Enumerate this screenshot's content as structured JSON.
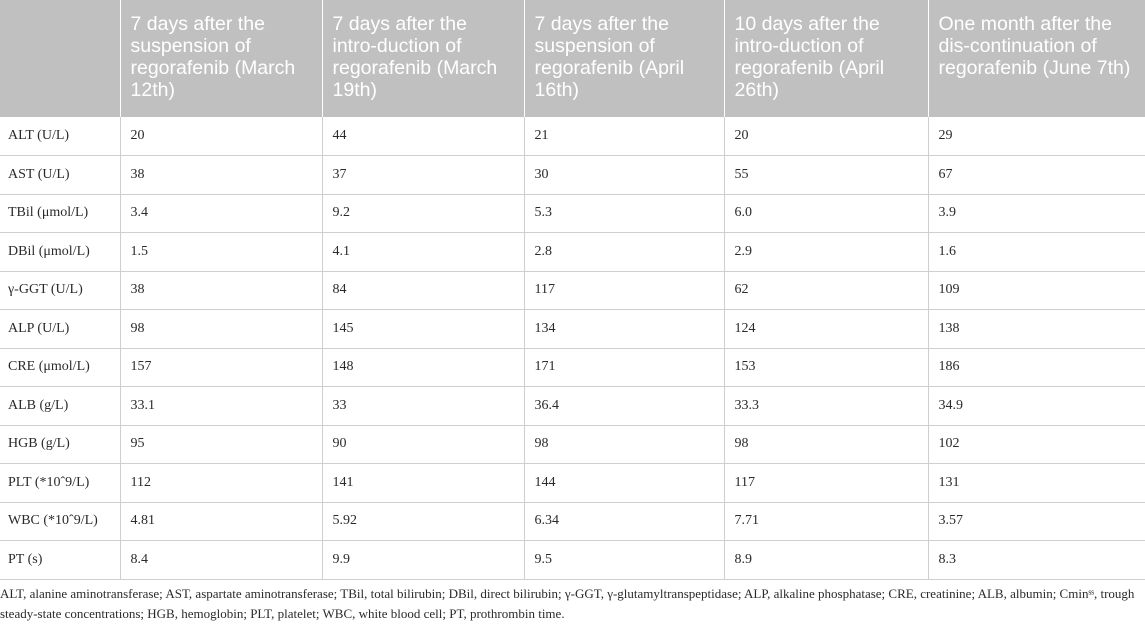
{
  "table": {
    "headers": [
      "",
      "7 days after the suspension of regorafenib (March 12th)",
      "7 days after the intro-duction of regorafenib (March 19th)",
      "7 days after the suspension of regorafenib (April 16th)",
      "10 days after the intro-duction of regorafenib (April 26th)",
      "One month after the dis-continuation of regorafenib (June 7th)"
    ],
    "rows": [
      [
        "ALT (U/L)",
        "20",
        "44",
        "21",
        "20",
        "29"
      ],
      [
        "AST (U/L)",
        "38",
        "37",
        "30",
        "55",
        "67"
      ],
      [
        "TBil (μmol/L)",
        "3.4",
        "9.2",
        "5.3",
        "6.0",
        "3.9"
      ],
      [
        "DBil (μmol/L)",
        "1.5",
        "4.1",
        "2.8",
        "2.9",
        "1.6"
      ],
      [
        "γ-GGT (U/L)",
        "38",
        "84",
        "117",
        "62",
        "109"
      ],
      [
        "ALP (U/L)",
        "98",
        "145",
        "134",
        "124",
        "138"
      ],
      [
        "CRE (μmol/L)",
        "157",
        "148",
        "171",
        "153",
        "186"
      ],
      [
        "ALB (g/L)",
        "33.1",
        "33",
        "36.4",
        "33.3",
        "34.9"
      ],
      [
        "HGB (g/L)",
        "95",
        "90",
        "98",
        "98",
        "102"
      ],
      [
        "PLT (*10ˆ9/L)",
        "112",
        "141",
        "144",
        "117",
        "131"
      ],
      [
        "WBC (*10ˆ9/L)",
        "4.81",
        "5.92",
        "6.34",
        "7.71",
        "3.57"
      ],
      [
        "PT (s)",
        "8.4",
        "9.9",
        "9.5",
        "8.9",
        "8.3"
      ]
    ]
  },
  "footnote": "ALT, alanine aminotransferase; AST, aspartate aminotransferase; TBil, total bilirubin; DBil, direct bilirubin; γ-GGT, γ-glutamyltranspeptidase; ALP, alkaline phosphatase; CRE, creatinine; ALB, albumin; Cminˢˢ, trough steady-state concentrations; HGB, hemoglobin; PLT, platelet; WBC, white blood cell; PT, prothrombin time."
}
